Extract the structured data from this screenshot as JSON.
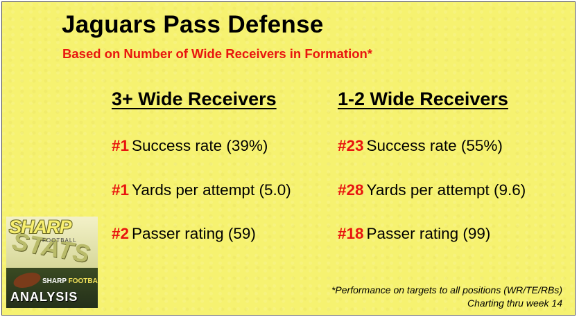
{
  "title": "Jaguars Pass Defense",
  "subtitle": "Based on Number of Wide Receivers in Formation*",
  "columns": [
    {
      "heading": "3+ Wide Receivers",
      "stats": [
        {
          "rank": "#1",
          "label": "Success rate (39%)"
        },
        {
          "rank": "#1",
          "label": "Yards per attempt (5.0)"
        },
        {
          "rank": "#2",
          "label": "Passer rating (59)"
        }
      ]
    },
    {
      "heading": "1-2 Wide Receivers",
      "stats": [
        {
          "rank": "#23",
          "label": "Success rate (55%)"
        },
        {
          "rank": "#28",
          "label": "Yards per attempt (9.6)"
        },
        {
          "rank": "#18",
          "label": "Passer rating (99)"
        }
      ]
    }
  ],
  "footnote": {
    "line1": "*Performance on targets to all positions (WR/TE/RBs)",
    "line2": "Charting thru week 14"
  },
  "logo": {
    "sharp": "SHARP",
    "football": "FOOTBALL",
    "stats": "STATS",
    "sfa_1": "SHARP",
    "sfa_2": "FOOTBALL",
    "analysis": "ANALYSIS"
  },
  "colors": {
    "background": "#f6f270",
    "accent_red": "#e8150f"
  }
}
